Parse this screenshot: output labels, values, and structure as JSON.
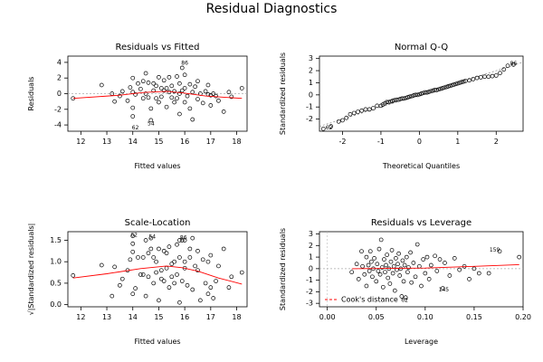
{
  "title": "Residual Diagnostics",
  "chart_data": [
    {
      "type": "scatter",
      "title": "Residuals vs Fitted",
      "xlabel": "Fitted values",
      "ylabel": "Residuals",
      "xlim": [
        11.5,
        18.4
      ],
      "ylim": [
        -4.8,
        4.8
      ],
      "xticks": [
        12,
        13,
        14,
        15,
        16,
        17,
        18
      ],
      "yticks": [
        -4,
        -2,
        0,
        2,
        4
      ],
      "zero_line": true,
      "point_color": "#000000",
      "smooth_color": "#ff0000",
      "smooth": [
        [
          11.7,
          -0.6
        ],
        [
          13.5,
          -0.2
        ],
        [
          14.4,
          0.15
        ],
        [
          15.3,
          0.3
        ],
        [
          15.9,
          0.1
        ],
        [
          16.8,
          -0.3
        ],
        [
          17.7,
          -0.5
        ],
        [
          18.2,
          -0.6
        ]
      ],
      "annotations": [
        {
          "label": "86",
          "x": 16.0,
          "y": 3.9
        },
        {
          "label": "62",
          "x": 14.1,
          "y": -4.4
        },
        {
          "label": "54",
          "x": 14.7,
          "y": -3.9
        }
      ],
      "points": [
        [
          11.7,
          -0.6
        ],
        [
          12.8,
          1.1
        ],
        [
          13.2,
          0.0
        ],
        [
          13.3,
          -1.0
        ],
        [
          13.5,
          -0.3
        ],
        [
          13.6,
          0.3
        ],
        [
          13.8,
          -0.9
        ],
        [
          13.9,
          0.8
        ],
        [
          14.0,
          2.0
        ],
        [
          14.0,
          0.2
        ],
        [
          14.0,
          -1.8
        ],
        [
          14.0,
          -2.9
        ],
        [
          14.1,
          -0.1
        ],
        [
          14.2,
          1.3
        ],
        [
          14.3,
          0.6
        ],
        [
          14.4,
          1.6
        ],
        [
          14.4,
          -0.6
        ],
        [
          14.5,
          2.6
        ],
        [
          14.5,
          0.0
        ],
        [
          14.6,
          1.4
        ],
        [
          14.6,
          -0.5
        ],
        [
          14.7,
          -1.9
        ],
        [
          14.7,
          -3.4
        ],
        [
          14.8,
          1.3
        ],
        [
          14.8,
          0.4
        ],
        [
          14.9,
          -0.6
        ],
        [
          14.9,
          1.0
        ],
        [
          15.0,
          2.1
        ],
        [
          15.0,
          -1.1
        ],
        [
          15.1,
          0.7
        ],
        [
          15.1,
          -0.4
        ],
        [
          15.2,
          1.7
        ],
        [
          15.2,
          0.4
        ],
        [
          15.3,
          -1.7
        ],
        [
          15.3,
          0.7
        ],
        [
          15.4,
          2.1
        ],
        [
          15.4,
          0.2
        ],
        [
          15.5,
          -0.5
        ],
        [
          15.5,
          1.0
        ],
        [
          15.6,
          -1.1
        ],
        [
          15.6,
          0.3
        ],
        [
          15.7,
          2.2
        ],
        [
          15.7,
          -0.6
        ],
        [
          15.8,
          1.3
        ],
        [
          15.8,
          0.0
        ],
        [
          15.8,
          -2.6
        ],
        [
          15.9,
          0.4
        ],
        [
          15.9,
          3.3
        ],
        [
          16.0,
          -1.1
        ],
        [
          16.0,
          0.7
        ],
        [
          16.0,
          2.4
        ],
        [
          16.1,
          -0.3
        ],
        [
          16.2,
          1.2
        ],
        [
          16.2,
          -1.9
        ],
        [
          16.3,
          0.2
        ],
        [
          16.3,
          -3.3
        ],
        [
          16.4,
          0.9
        ],
        [
          16.5,
          -0.7
        ],
        [
          16.5,
          1.6
        ],
        [
          16.6,
          0.0
        ],
        [
          16.7,
          -1.2
        ],
        [
          16.8,
          0.3
        ],
        [
          16.9,
          -0.1
        ],
        [
          16.9,
          1.1
        ],
        [
          17.0,
          -1.5
        ],
        [
          17.0,
          -0.2
        ],
        [
          17.1,
          0.0
        ],
        [
          17.2,
          -0.3
        ],
        [
          17.3,
          -0.9
        ],
        [
          17.5,
          -2.3
        ],
        [
          17.7,
          0.2
        ],
        [
          17.8,
          -0.4
        ],
        [
          18.2,
          0.7
        ]
      ]
    },
    {
      "type": "scatter",
      "title": "Normal Q-Q",
      "xlabel": "Theoretical Quantiles",
      "ylabel": "Standardized residuals",
      "xlim": [
        -2.6,
        2.7
      ],
      "ylim": [
        -3.0,
        3.2
      ],
      "xticks": [
        -2,
        -1,
        0,
        1,
        2
      ],
      "yticks": [
        -2,
        -1,
        0,
        1,
        2,
        3
      ],
      "reference_line": [
        [
          -2.6,
          -2.6
        ],
        [
          2.7,
          2.7
        ]
      ],
      "point_color": "#000000",
      "annotations": [
        {
          "label": "86",
          "x": 2.45,
          "y": 2.55
        },
        {
          "label": "62",
          "x": -2.35,
          "y": -2.75
        }
      ],
      "points": [
        [
          -2.5,
          -2.8
        ],
        [
          -2.3,
          -2.6
        ],
        [
          -2.1,
          -2.2
        ],
        [
          -2.0,
          -2.1
        ],
        [
          -1.9,
          -1.9
        ],
        [
          -1.8,
          -1.6
        ],
        [
          -1.7,
          -1.5
        ],
        [
          -1.6,
          -1.4
        ],
        [
          -1.5,
          -1.3
        ],
        [
          -1.4,
          -1.2
        ],
        [
          -1.3,
          -1.2
        ],
        [
          -1.2,
          -1.1
        ],
        [
          -1.1,
          -0.9
        ],
        [
          -1.0,
          -0.9
        ],
        [
          -0.95,
          -0.8
        ],
        [
          -0.9,
          -0.7
        ],
        [
          -0.85,
          -0.6
        ],
        [
          -0.8,
          -0.6
        ],
        [
          -0.75,
          -0.55
        ],
        [
          -0.7,
          -0.5
        ],
        [
          -0.65,
          -0.45
        ],
        [
          -0.6,
          -0.4
        ],
        [
          -0.55,
          -0.4
        ],
        [
          -0.5,
          -0.35
        ],
        [
          -0.45,
          -0.3
        ],
        [
          -0.4,
          -0.3
        ],
        [
          -0.35,
          -0.25
        ],
        [
          -0.3,
          -0.2
        ],
        [
          -0.25,
          -0.15
        ],
        [
          -0.2,
          -0.1
        ],
        [
          -0.15,
          -0.05
        ],
        [
          -0.1,
          0.0
        ],
        [
          -0.05,
          0.0
        ],
        [
          0.0,
          0.05
        ],
        [
          0.05,
          0.1
        ],
        [
          0.1,
          0.15
        ],
        [
          0.15,
          0.2
        ],
        [
          0.2,
          0.2
        ],
        [
          0.25,
          0.25
        ],
        [
          0.3,
          0.3
        ],
        [
          0.35,
          0.35
        ],
        [
          0.4,
          0.4
        ],
        [
          0.45,
          0.4
        ],
        [
          0.5,
          0.45
        ],
        [
          0.55,
          0.5
        ],
        [
          0.6,
          0.55
        ],
        [
          0.65,
          0.6
        ],
        [
          0.7,
          0.65
        ],
        [
          0.75,
          0.7
        ],
        [
          0.8,
          0.75
        ],
        [
          0.85,
          0.8
        ],
        [
          0.9,
          0.85
        ],
        [
          0.95,
          0.9
        ],
        [
          1.0,
          0.95
        ],
        [
          1.05,
          1.0
        ],
        [
          1.1,
          1.05
        ],
        [
          1.15,
          1.1
        ],
        [
          1.2,
          1.15
        ],
        [
          1.3,
          1.2
        ],
        [
          1.4,
          1.3
        ],
        [
          1.5,
          1.4
        ],
        [
          1.6,
          1.45
        ],
        [
          1.7,
          1.5
        ],
        [
          1.8,
          1.5
        ],
        [
          1.9,
          1.55
        ],
        [
          2.0,
          1.6
        ],
        [
          2.1,
          1.8
        ],
        [
          2.2,
          2.1
        ],
        [
          2.3,
          2.4
        ],
        [
          2.45,
          2.5
        ]
      ]
    },
    {
      "type": "scatter",
      "title": "Scale-Location",
      "xlabel": "Fitted values",
      "ylabel": "√|Standardized residuals|",
      "xlim": [
        11.5,
        18.4
      ],
      "ylim": [
        -0.05,
        1.7
      ],
      "xticks": [
        12,
        13,
        14,
        15,
        16,
        17,
        18
      ],
      "yticks": [
        0.0,
        0.5,
        1.0,
        1.5
      ],
      "point_color": "#000000",
      "smooth_color": "#ff0000",
      "smooth": [
        [
          11.7,
          0.62
        ],
        [
          13.0,
          0.72
        ],
        [
          14.3,
          0.84
        ],
        [
          15.3,
          0.9
        ],
        [
          15.9,
          0.86
        ],
        [
          16.5,
          0.78
        ],
        [
          17.3,
          0.62
        ],
        [
          18.2,
          0.48
        ]
      ],
      "annotations": [
        {
          "label": "62",
          "x": 14.05,
          "y": 1.62
        },
        {
          "label": "54",
          "x": 14.75,
          "y": 1.57
        },
        {
          "label": "86",
          "x": 15.95,
          "y": 1.55
        }
      ],
      "points": [
        [
          11.7,
          0.68
        ],
        [
          12.8,
          0.92
        ],
        [
          13.2,
          0.2
        ],
        [
          13.3,
          0.88
        ],
        [
          13.5,
          0.45
        ],
        [
          13.6,
          0.6
        ],
        [
          13.8,
          0.8
        ],
        [
          13.9,
          1.05
        ],
        [
          14.0,
          1.42
        ],
        [
          14.0,
          1.6
        ],
        [
          14.0,
          0.25
        ],
        [
          14.0,
          1.23
        ],
        [
          14.1,
          0.38
        ],
        [
          14.2,
          1.1
        ],
        [
          14.3,
          0.7
        ],
        [
          14.4,
          1.1
        ],
        [
          14.4,
          0.7
        ],
        [
          14.5,
          1.5
        ],
        [
          14.5,
          0.2
        ],
        [
          14.6,
          1.2
        ],
        [
          14.6,
          0.65
        ],
        [
          14.7,
          1.3
        ],
        [
          14.7,
          1.55
        ],
        [
          14.8,
          1.1
        ],
        [
          14.8,
          0.5
        ],
        [
          14.9,
          0.75
        ],
        [
          14.9,
          1.0
        ],
        [
          15.0,
          1.3
        ],
        [
          15.0,
          0.1
        ],
        [
          15.1,
          0.8
        ],
        [
          15.1,
          0.6
        ],
        [
          15.2,
          1.25
        ],
        [
          15.2,
          0.55
        ],
        [
          15.3,
          1.2
        ],
        [
          15.3,
          0.85
        ],
        [
          15.4,
          1.35
        ],
        [
          15.4,
          0.4
        ],
        [
          15.5,
          0.65
        ],
        [
          15.5,
          0.95
        ],
        [
          15.6,
          1.0
        ],
        [
          15.6,
          0.5
        ],
        [
          15.7,
          1.4
        ],
        [
          15.7,
          0.7
        ],
        [
          15.8,
          1.1
        ],
        [
          15.8,
          0.05
        ],
        [
          15.8,
          1.5
        ],
        [
          15.9,
          0.55
        ],
        [
          15.9,
          1.5
        ],
        [
          16.0,
          1.0
        ],
        [
          16.0,
          0.85
        ],
        [
          16.0,
          1.5
        ],
        [
          16.1,
          0.45
        ],
        [
          16.2,
          1.1
        ],
        [
          16.2,
          1.3
        ],
        [
          16.3,
          0.35
        ],
        [
          16.3,
          1.55
        ],
        [
          16.4,
          0.9
        ],
        [
          16.5,
          0.8
        ],
        [
          16.5,
          1.25
        ],
        [
          16.6,
          0.1
        ],
        [
          16.7,
          1.05
        ],
        [
          16.8,
          0.5
        ],
        [
          16.9,
          0.25
        ],
        [
          16.9,
          1.0
        ],
        [
          17.0,
          1.15
        ],
        [
          17.0,
          0.4
        ],
        [
          17.1,
          0.15
        ],
        [
          17.2,
          0.55
        ],
        [
          17.3,
          0.9
        ],
        [
          17.5,
          1.3
        ],
        [
          17.7,
          0.4
        ],
        [
          17.8,
          0.65
        ],
        [
          18.2,
          0.75
        ]
      ]
    },
    {
      "type": "scatter",
      "title": "Residuals vs Leverage",
      "xlabel": "Leverage",
      "ylabel": "Standardized residuals",
      "xlim": [
        -0.008,
        0.2
      ],
      "ylim": [
        -3.3,
        3.2
      ],
      "xticks": [
        0.0,
        0.05,
        0.1,
        0.15,
        0.2
      ],
      "yticks": [
        -3,
        -2,
        -1,
        0,
        1,
        2,
        3
      ],
      "zero_line": true,
      "legend": "Cook's distance",
      "legend_position": "bottom-left",
      "point_color": "#000000",
      "smooth_color": "#ff0000",
      "smooth": [
        [
          0.025,
          0.0
        ],
        [
          0.06,
          0.02
        ],
        [
          0.1,
          0.05
        ],
        [
          0.15,
          0.2
        ],
        [
          0.196,
          0.35
        ]
      ],
      "annotations": [
        {
          "label": "159",
          "x": 0.171,
          "y": 1.6
        },
        {
          "label": "145",
          "x": 0.119,
          "y": -1.85
        },
        {
          "label": "62",
          "x": 0.079,
          "y": -2.75
        }
      ],
      "points": [
        [
          0.025,
          -0.3
        ],
        [
          0.03,
          0.4
        ],
        [
          0.032,
          -0.9
        ],
        [
          0.035,
          1.5
        ],
        [
          0.036,
          0.2
        ],
        [
          0.038,
          -0.5
        ],
        [
          0.04,
          1.0
        ],
        [
          0.04,
          -1.5
        ],
        [
          0.042,
          0.3
        ],
        [
          0.043,
          -0.2
        ],
        [
          0.044,
          1.5
        ],
        [
          0.045,
          0.6
        ],
        [
          0.046,
          -0.7
        ],
        [
          0.047,
          0.0
        ],
        [
          0.048,
          0.9
        ],
        [
          0.05,
          -1.1
        ],
        [
          0.051,
          0.4
        ],
        [
          0.052,
          -0.2
        ],
        [
          0.053,
          1.7
        ],
        [
          0.054,
          -0.5
        ],
        [
          0.055,
          2.5
        ],
        [
          0.056,
          0.1
        ],
        [
          0.057,
          -1.6
        ],
        [
          0.058,
          0.8
        ],
        [
          0.059,
          -0.3
        ],
        [
          0.06,
          0.3
        ],
        [
          0.061,
          1.2
        ],
        [
          0.062,
          -0.8
        ],
        [
          0.063,
          0.0
        ],
        [
          0.064,
          -1.3
        ],
        [
          0.065,
          0.6
        ],
        [
          0.066,
          1.6
        ],
        [
          0.067,
          -0.4
        ],
        [
          0.068,
          0.2
        ],
        [
          0.069,
          -1.9
        ],
        [
          0.07,
          0.9
        ],
        [
          0.071,
          -0.1
        ],
        [
          0.072,
          0.4
        ],
        [
          0.073,
          1.3
        ],
        [
          0.074,
          -0.6
        ],
        [
          0.075,
          0.0
        ],
        [
          0.076,
          -2.4
        ],
        [
          0.077,
          0.7
        ],
        [
          0.078,
          -1.1
        ],
        [
          0.079,
          0.3
        ],
        [
          0.08,
          -2.5
        ],
        [
          0.081,
          1.0
        ],
        [
          0.082,
          -0.3
        ],
        [
          0.083,
          0.1
        ],
        [
          0.085,
          1.4
        ],
        [
          0.086,
          -1.2
        ],
        [
          0.088,
          0.5
        ],
        [
          0.09,
          -0.7
        ],
        [
          0.092,
          2.1
        ],
        [
          0.094,
          0.2
        ],
        [
          0.096,
          -1.5
        ],
        [
          0.098,
          0.8
        ],
        [
          0.1,
          -0.4
        ],
        [
          0.102,
          1.0
        ],
        [
          0.104,
          -0.9
        ],
        [
          0.106,
          0.3
        ],
        [
          0.11,
          1.1
        ],
        [
          0.112,
          -0.2
        ],
        [
          0.115,
          0.8
        ],
        [
          0.118,
          -1.7
        ],
        [
          0.12,
          0.5
        ],
        [
          0.125,
          -0.6
        ],
        [
          0.13,
          0.9
        ],
        [
          0.135,
          -0.1
        ],
        [
          0.14,
          0.2
        ],
        [
          0.145,
          -0.9
        ],
        [
          0.15,
          0.0
        ],
        [
          0.155,
          -0.4
        ],
        [
          0.165,
          -0.4
        ],
        [
          0.176,
          1.5
        ],
        [
          0.196,
          1.0
        ]
      ]
    }
  ]
}
